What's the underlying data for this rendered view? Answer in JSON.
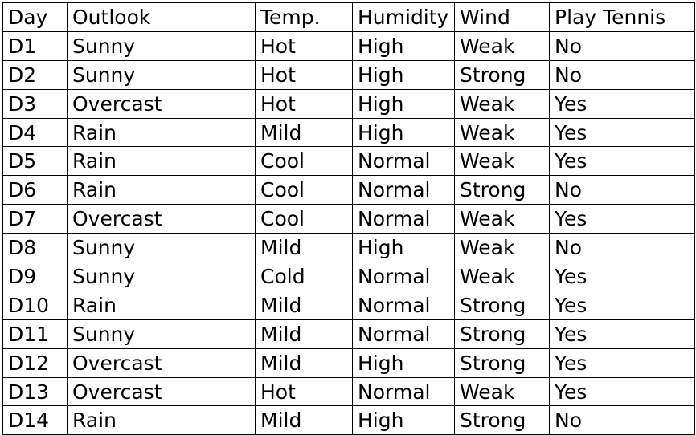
{
  "table": {
    "headers": [
      "Day",
      "Outlook",
      "Temp.",
      "Humidity",
      "Wind",
      "Play Tennis"
    ],
    "rows": [
      [
        "D1",
        "Sunny",
        "Hot",
        "High",
        "Weak",
        "No"
      ],
      [
        "D2",
        "Sunny",
        "Hot",
        "High",
        "Strong",
        "No"
      ],
      [
        "D3",
        "Overcast",
        "Hot",
        "High",
        "Weak",
        "Yes"
      ],
      [
        "D4",
        "Rain",
        "Mild",
        "High",
        "Weak",
        "Yes"
      ],
      [
        "D5",
        "Rain",
        "Cool",
        "Normal",
        "Weak",
        "Yes"
      ],
      [
        "D6",
        "Rain",
        "Cool",
        "Normal",
        "Strong",
        "No"
      ],
      [
        "D7",
        "Overcast",
        "Cool",
        "Normal",
        "Weak",
        "Yes"
      ],
      [
        "D8",
        "Sunny",
        "Mild",
        "High",
        "Weak",
        "No"
      ],
      [
        "D9",
        "Sunny",
        "Cold",
        "Normal",
        "Weak",
        "Yes"
      ],
      [
        "D10",
        "Rain",
        "Mild",
        "Normal",
        "Strong",
        "Yes"
      ],
      [
        "D11",
        "Sunny",
        "Mild",
        "Normal",
        "Strong",
        "Yes"
      ],
      [
        "D12",
        "Overcast",
        "Mild",
        "High",
        "Strong",
        "Yes"
      ],
      [
        "D13",
        "Overcast",
        "Hot",
        "Normal",
        "Weak",
        "Yes"
      ],
      [
        "D14",
        "Rain",
        "Mild",
        "High",
        "Strong",
        "No"
      ]
    ]
  }
}
